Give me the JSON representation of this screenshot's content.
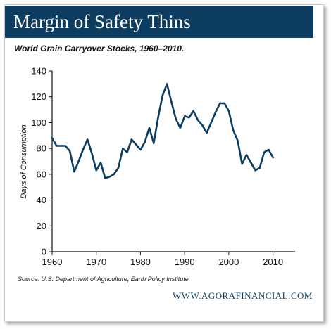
{
  "header": {
    "title": "Margin of Safety Thins"
  },
  "chart_data": {
    "type": "line",
    "title": "World Grain Carryover Stocks, 1960–2010.",
    "xlabel": "",
    "ylabel": "Days of Consumption",
    "xlim": [
      1960,
      2015
    ],
    "ylim": [
      0,
      140
    ],
    "xticks": [
      1960,
      1970,
      1980,
      1990,
      2000,
      2010
    ],
    "yticks": [
      0,
      20,
      40,
      60,
      80,
      100,
      120,
      140
    ],
    "grid": false,
    "legend": "none",
    "line_color": "#0d3c61",
    "x": [
      1960,
      1961,
      1962,
      1963,
      1964,
      1965,
      1966,
      1967,
      1968,
      1969,
      1970,
      1971,
      1972,
      1973,
      1974,
      1975,
      1976,
      1977,
      1978,
      1979,
      1980,
      1981,
      1982,
      1983,
      1984,
      1985,
      1986,
      1987,
      1988,
      1989,
      1990,
      1991,
      1992,
      1993,
      1994,
      1995,
      1996,
      1997,
      1998,
      1999,
      2000,
      2001,
      2002,
      2003,
      2004,
      2005,
      2006,
      2007,
      2008,
      2009,
      2010
    ],
    "series": [
      {
        "values": [
          88,
          82,
          82,
          82,
          78,
          62,
          70,
          79,
          87,
          76,
          63,
          69,
          57,
          58,
          60,
          65,
          80,
          77,
          87,
          83,
          79,
          85,
          96,
          84,
          104,
          121,
          130,
          116,
          103,
          96,
          105,
          104,
          109,
          102,
          98,
          92,
          100,
          108,
          115,
          115,
          109,
          94,
          86,
          68,
          75,
          69,
          63,
          65,
          77,
          79,
          73
        ]
      }
    ]
  },
  "footer": {
    "source": "Source: U.S. Department of Agriculture, Earth Policy Institute",
    "website": "WWW.AGORAFINANCIAL.COM"
  }
}
